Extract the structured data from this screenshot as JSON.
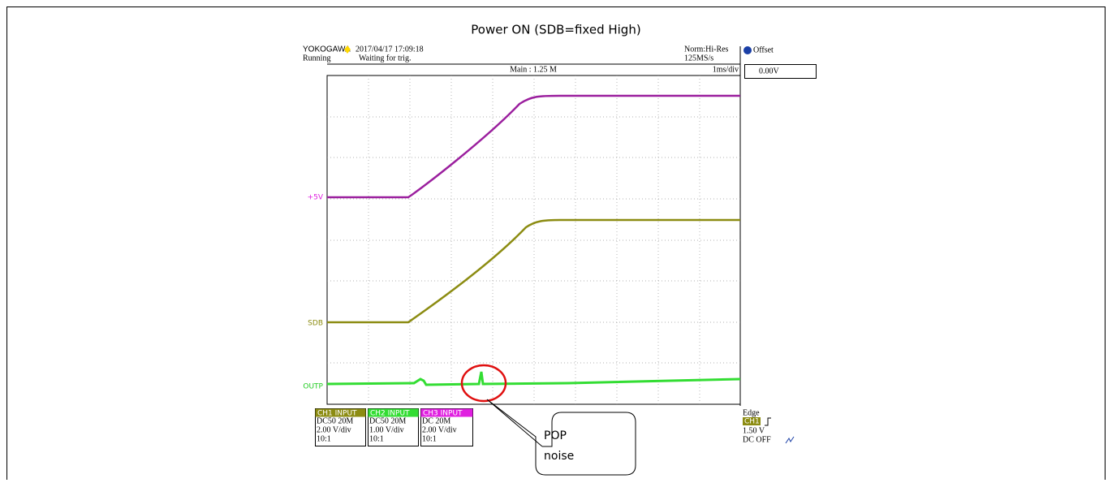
{
  "title": "Power ON (SDB=fixed High)",
  "header": {
    "brand": "YOKOGAWA",
    "datetime": "2017/04/17 17:09:18",
    "status": "Running",
    "trigger_state": "Waiting for trig.",
    "mode": "Norm:Hi-Res",
    "sample_rate": "125MS/s",
    "record": "Main : 1.25 M",
    "timebase": "1ms/div"
  },
  "offset": {
    "label": "Offset",
    "value": "0.00V"
  },
  "traces": [
    "+5V",
    "SDB",
    "OUTP"
  ],
  "channels": [
    {
      "name": "CH1 INPUT",
      "lines": [
        "DC50 20M",
        "2.00 V/div",
        "10:1"
      ]
    },
    {
      "name": "CH2 INPUT",
      "lines": [
        "DC50 20M",
        "1.00 V/div",
        "10:1"
      ]
    },
    {
      "name": "CH3 INPUT",
      "lines": [
        "DC 20M",
        "2.00 V/div",
        "10:1"
      ]
    }
  ],
  "trigger": {
    "type": "Edge",
    "source": "CH1",
    "level": "1.50 V",
    "coupling": "DC OFF"
  },
  "callout": [
    "POP",
    "noise"
  ]
}
